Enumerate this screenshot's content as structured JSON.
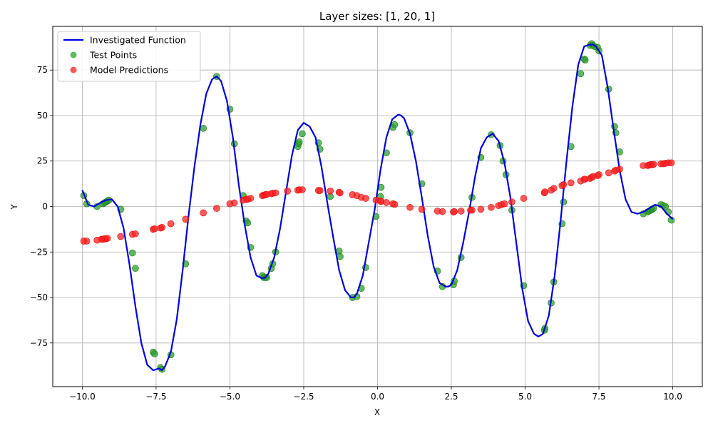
{
  "chart_data": {
    "type": "scatter",
    "title": "Layer sizes: [1, 20, 1]",
    "xlabel": "X",
    "ylabel": "Y",
    "xlim": [
      -11,
      11
    ],
    "ylim": [
      -99,
      99
    ],
    "grid": true,
    "legend_placement": "top-left",
    "x_ticks": [
      -10,
      -7.5,
      -5,
      -2.5,
      0,
      2.5,
      5,
      7.5,
      10
    ],
    "x_tick_labels": [
      "−10.0",
      "−7.5",
      "−5.0",
      "−2.5",
      "0.0",
      "2.5",
      "5.0",
      "7.5",
      "10.0"
    ],
    "y_ticks": [
      -75,
      -50,
      -25,
      0,
      25,
      50,
      75
    ],
    "y_tick_labels": [
      "−75",
      "−50",
      "−25",
      "0",
      "25",
      "50",
      "75"
    ],
    "series": [
      {
        "name": "Investigated Function",
        "kind": "line",
        "color": "#0000dd",
        "x": [
          -10,
          -9.8,
          -9.6,
          -9.4,
          -9.2,
          -9.0,
          -8.8,
          -8.6,
          -8.4,
          -8.2,
          -8.0,
          -7.8,
          -7.6,
          -7.4,
          -7.3,
          -7.2,
          -7.0,
          -6.8,
          -6.6,
          -6.4,
          -6.2,
          -6.0,
          -5.8,
          -5.6,
          -5.45,
          -5.3,
          -5.1,
          -4.9,
          -4.7,
          -4.5,
          -4.3,
          -4.1,
          -3.9,
          -3.8,
          -3.7,
          -3.5,
          -3.3,
          -3.1,
          -2.9,
          -2.7,
          -2.5,
          -2.3,
          -2.1,
          -1.9,
          -1.7,
          -1.5,
          -1.3,
          -1.1,
          -0.9,
          -0.8,
          -0.7,
          -0.5,
          -0.3,
          -0.1,
          0.1,
          0.3,
          0.5,
          0.7,
          0.8,
          0.9,
          1.1,
          1.3,
          1.5,
          1.7,
          1.9,
          2.1,
          2.3,
          2.4,
          2.5,
          2.7,
          2.9,
          3.1,
          3.3,
          3.5,
          3.7,
          3.9,
          4.1,
          4.3,
          4.5,
          4.7,
          4.9,
          5.1,
          5.3,
          5.45,
          5.6,
          5.8,
          6.0,
          6.2,
          6.4,
          6.6,
          6.8,
          7.0,
          7.2,
          7.3,
          7.4,
          7.6,
          7.8,
          8.0,
          8.2,
          8.4,
          8.6,
          8.8,
          9.0,
          9.2,
          9.4,
          9.6,
          9.8,
          10.0
        ],
        "y": [
          9,
          1,
          0,
          2,
          3.5,
          4,
          0,
          -12,
          -32,
          -55,
          -75,
          -87,
          -90,
          -89,
          -90,
          -88,
          -80,
          -62,
          -35,
          -5,
          22,
          45,
          62,
          70,
          71.5,
          69,
          58,
          38,
          12,
          -10,
          -28,
          -38,
          -39.5,
          -39,
          -37,
          -28,
          -12,
          8,
          28,
          42,
          46,
          44,
          38,
          22,
          2,
          -17,
          -35,
          -46,
          -50,
          -50,
          -48,
          -38,
          -20,
          -2,
          20,
          38,
          48,
          50.5,
          50,
          48.5,
          40,
          25,
          5,
          -16,
          -33,
          -42,
          -44,
          -44,
          -43,
          -35,
          -20,
          -3,
          16,
          32,
          38,
          40,
          36,
          24,
          5,
          -20,
          -45,
          -63,
          -70,
          -71.5,
          -70,
          -60,
          -38,
          -8,
          25,
          55,
          78,
          88,
          89,
          89,
          88,
          83,
          65,
          42,
          20,
          4,
          -3,
          -4,
          -3,
          -1,
          1,
          0,
          -4,
          -7
        ]
      },
      {
        "name": "Test Points",
        "kind": "scatter",
        "color": "#2ca02c",
        "x": [
          -9.95,
          -9.85,
          -9.5,
          -9.3,
          -9.25,
          -9.2,
          -9.15,
          -9.1,
          -8.7,
          -8.3,
          -8.2,
          -7.6,
          -7.55,
          -7.35,
          -7.3,
          -7.0,
          -6.5,
          -5.9,
          -5.45,
          -5.0,
          -4.85,
          -4.55,
          -4.45,
          -4.4,
          -4.3,
          -3.9,
          -3.85,
          -3.8,
          -3.75,
          -3.6,
          -3.55,
          -3.45,
          -2.7,
          -2.68,
          -2.65,
          -2.55,
          -2.0,
          -1.95,
          -1.6,
          -1.3,
          -1.27,
          -0.85,
          -0.7,
          -0.55,
          -0.4,
          -0.05,
          0.1,
          0.12,
          0.3,
          0.52,
          0.58,
          1.1,
          1.5,
          2.03,
          2.2,
          2.57,
          2.6,
          2.83,
          3.2,
          3.5,
          3.85,
          4.15,
          4.25,
          4.35,
          4.55,
          4.95,
          5.65,
          5.67,
          5.88,
          5.97,
          6.25,
          6.3,
          6.55,
          6.88,
          7.0,
          7.03,
          7.2,
          7.25,
          7.3,
          7.35,
          7.45,
          7.5,
          7.83,
          8.03,
          8.07,
          8.2,
          9.0,
          9.15,
          9.2,
          9.25,
          9.3,
          9.35,
          9.6,
          9.68,
          9.75,
          9.85,
          9.95
        ],
        "y": [
          6,
          1.5,
          0,
          1.5,
          2,
          2.5,
          3,
          3.5,
          -1.5,
          -25.5,
          -34,
          -80,
          -81,
          -88.5,
          -89.5,
          -81.5,
          -31.5,
          43,
          71.5,
          53.5,
          34.5,
          6,
          -8,
          -9,
          -22.5,
          -38,
          -39,
          -39,
          -39,
          -34,
          -31.5,
          -25,
          33,
          34.5,
          35.5,
          40,
          35,
          31.5,
          5.5,
          -24.5,
          -27.5,
          -50,
          -49.5,
          -45,
          -33.5,
          -5.5,
          5.5,
          10.5,
          29.5,
          43.5,
          45,
          40.5,
          12.5,
          -35.5,
          -44,
          -43,
          -41,
          -28,
          5,
          27,
          39.5,
          33.5,
          25,
          17.5,
          -2,
          -43.5,
          -68,
          -67,
          -53,
          -41.5,
          -9.5,
          2.5,
          33,
          73,
          81,
          80.5,
          88.5,
          89.5,
          88.5,
          88,
          87.5,
          85.5,
          64.5,
          44,
          40.5,
          30,
          -4,
          -3,
          -2.5,
          -2,
          -1.5,
          -1,
          1,
          0.5,
          0,
          -3,
          -7.5
        ]
      },
      {
        "name": "Model Predictions",
        "kind": "scatter",
        "color": "#ff2020",
        "x": [
          -9.95,
          -9.85,
          -9.5,
          -9.35,
          -9.3,
          -9.25,
          -9.2,
          -9.15,
          -8.7,
          -8.3,
          -8.2,
          -7.6,
          -7.55,
          -7.35,
          -7.3,
          -7.0,
          -6.5,
          -5.9,
          -5.45,
          -5.0,
          -4.85,
          -4.55,
          -4.45,
          -4.4,
          -4.3,
          -3.9,
          -3.85,
          -3.8,
          -3.75,
          -3.6,
          -3.55,
          -3.45,
          -3.05,
          -2.7,
          -2.65,
          -2.55,
          -2.0,
          -1.95,
          -1.6,
          -1.3,
          -1.27,
          -0.85,
          -0.7,
          -0.55,
          -0.4,
          -0.05,
          0.1,
          0.12,
          0.3,
          0.52,
          0.58,
          1.1,
          1.5,
          2.03,
          2.2,
          2.57,
          2.6,
          2.83,
          3.15,
          3.2,
          3.5,
          3.85,
          4.1,
          4.2,
          4.3,
          4.55,
          4.95,
          5.65,
          5.67,
          5.88,
          5.97,
          6.25,
          6.3,
          6.55,
          6.88,
          7.0,
          7.03,
          7.2,
          7.25,
          7.3,
          7.45,
          7.5,
          7.83,
          8.03,
          8.07,
          8.2,
          9.0,
          9.15,
          9.2,
          9.25,
          9.3,
          9.35,
          9.6,
          9.68,
          9.75,
          9.85,
          9.95
        ],
        "y": [
          -19,
          -19,
          -18.5,
          -18,
          -18,
          -17.8,
          -17.7,
          -17.5,
          -16.5,
          -15.3,
          -15,
          -12.5,
          -12.2,
          -11.8,
          -11.5,
          -9.5,
          -7,
          -3.5,
          -1,
          1.5,
          2,
          3.5,
          4,
          4,
          4.5,
          6,
          6.2,
          6.5,
          6.7,
          7,
          7.3,
          7.5,
          8.5,
          9,
          9.2,
          9.2,
          8.8,
          8.8,
          8.5,
          7.8,
          7.5,
          6.5,
          6,
          5,
          4.5,
          3.5,
          3,
          2.8,
          2.2,
          1.5,
          1.2,
          -0.5,
          -1.5,
          -2.5,
          -2.8,
          -3,
          -2.8,
          -2.5,
          -2,
          -2,
          -1.5,
          -0.5,
          0.5,
          1,
          1.5,
          2.5,
          4.5,
          7.5,
          8,
          9,
          10,
          11.5,
          12,
          13,
          14,
          15,
          15,
          15.5,
          16,
          16.5,
          17,
          17.5,
          18.5,
          19.5,
          20,
          20.5,
          22.5,
          22.5,
          22.8,
          23,
          23,
          23.2,
          23.5,
          23.5,
          23.8,
          24,
          24
        ]
      }
    ]
  }
}
